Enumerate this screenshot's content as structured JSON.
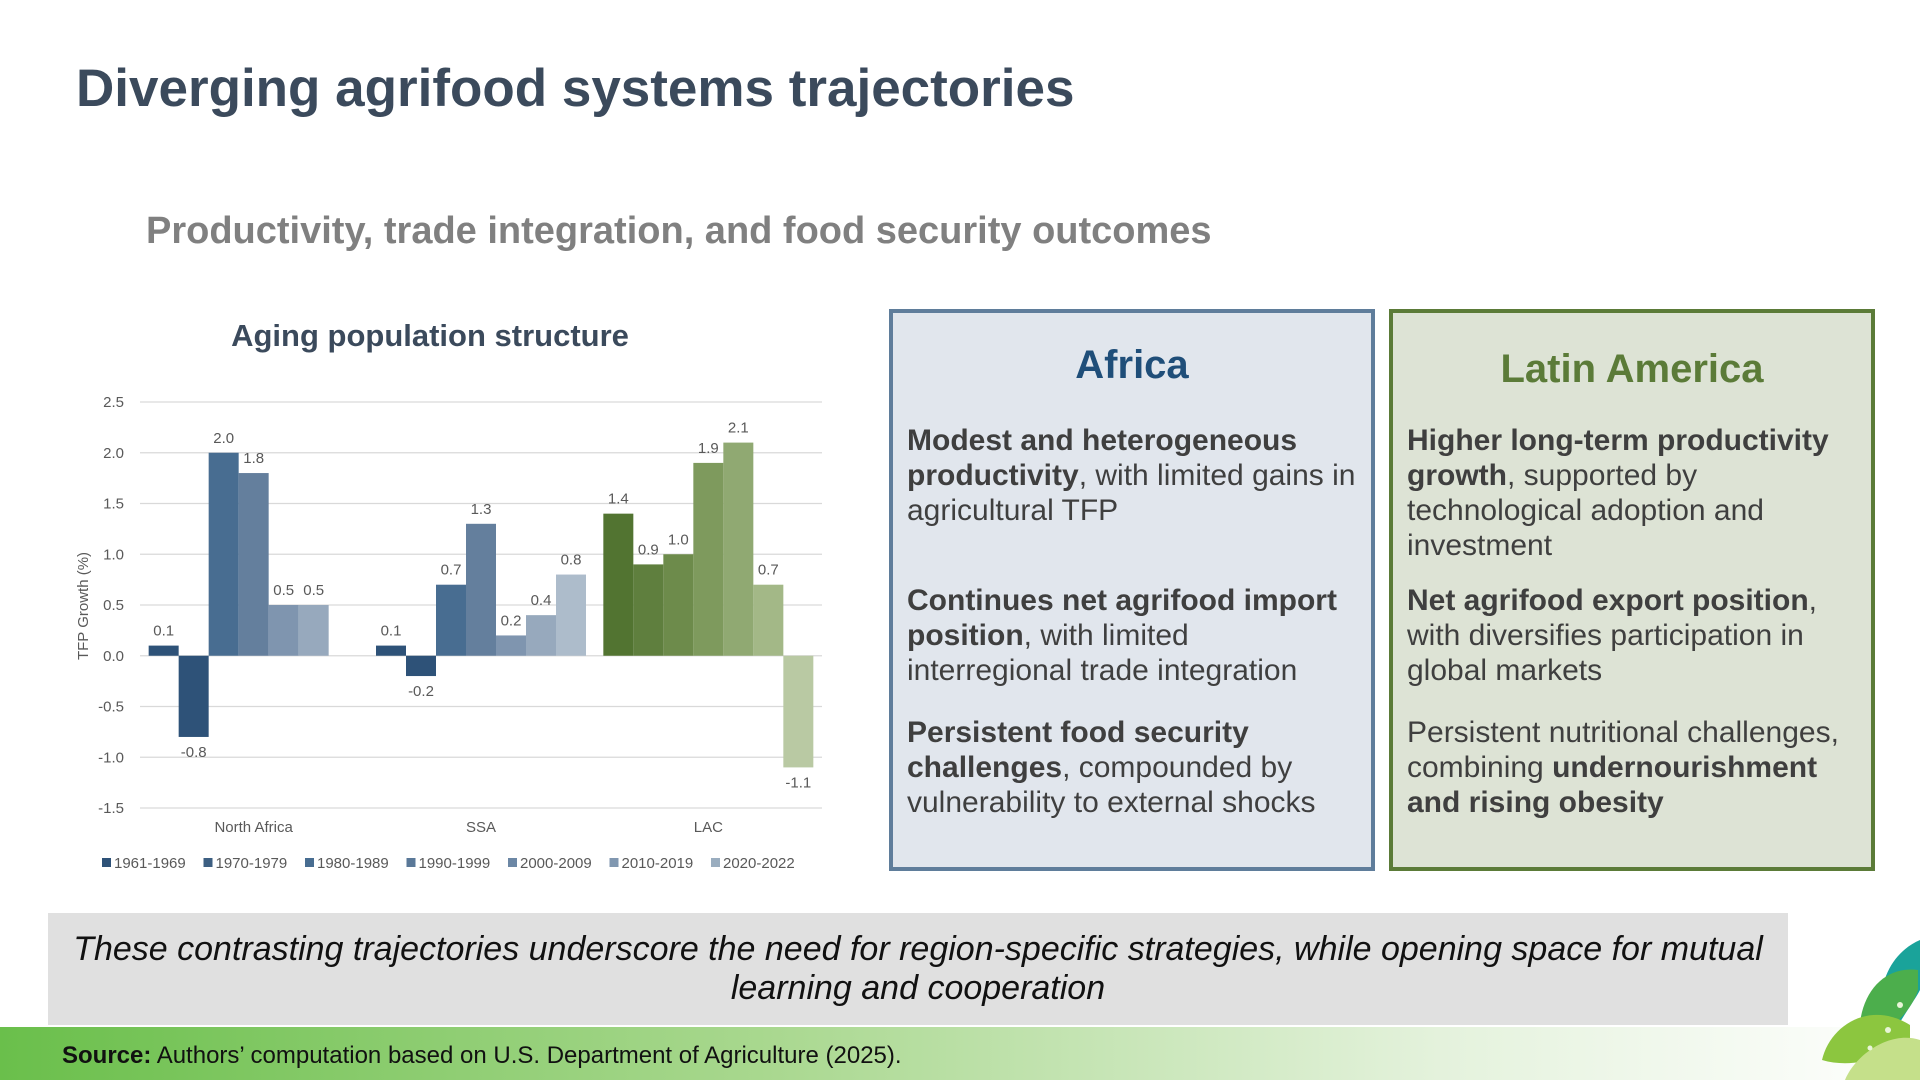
{
  "slide": {
    "title": "Diverging agrifood systems trajectories",
    "subtitle": "Productivity, trade integration, and food security outcomes"
  },
  "chart_data": {
    "type": "bar",
    "title": "Aging population structure",
    "ylabel": "TFP Growth (%)",
    "xlabel": "",
    "categories": [
      "North Africa",
      "SSA",
      "LAC"
    ],
    "ylim": [
      -1.5,
      2.5
    ],
    "yticks": [
      2.5,
      2.0,
      1.5,
      1.0,
      0.5,
      0.0,
      -0.5,
      -1.0,
      -1.5
    ],
    "ytick_labels": [
      "2.5",
      "2.0",
      "1.5",
      "1.0",
      "0.5",
      "0.0",
      "-0.5",
      "-1.0",
      "-1.5"
    ],
    "grid": true,
    "legend_position": "bottom",
    "series": [
      {
        "name": "1961-1969",
        "values": [
          0.1,
          0.1,
          1.4
        ],
        "labels": [
          "0.1",
          "0.1",
          "1.4"
        ]
      },
      {
        "name": "1970-1979",
        "values": [
          -0.8,
          -0.2,
          0.9
        ],
        "labels": [
          "-0.8",
          "-0.2",
          "0.9"
        ]
      },
      {
        "name": "1980-1989",
        "values": [
          2.0,
          0.7,
          1.0
        ],
        "labels": [
          "2.0",
          "0.7",
          "1.0"
        ]
      },
      {
        "name": "1990-1999",
        "values": [
          1.8,
          1.3,
          1.9
        ],
        "labels": [
          "1.8",
          "1.3",
          "1.9"
        ]
      },
      {
        "name": "2000-2009",
        "values": [
          0.5,
          0.2,
          2.1
        ],
        "labels": [
          "0.5",
          "0.2",
          "2.1"
        ]
      },
      {
        "name": "2010-2019",
        "values": [
          0.5,
          0.4,
          0.7
        ],
        "labels": [
          "0.5",
          "0.4",
          "0.7"
        ]
      },
      {
        "name": "2020-2022",
        "values": [
          null,
          0.8,
          -1.1
        ],
        "labels": [
          "",
          "0.8",
          "-1.1"
        ]
      }
    ],
    "colors": {
      "North Africa": [
        "#2e5278",
        "#2e5278",
        "#486d91",
        "#647f9d",
        "#7f95af",
        "#97a9bd",
        "#adbccb"
      ],
      "SSA": [
        "#2e5278",
        "#2e5278",
        "#486d91",
        "#647f9d",
        "#7f95af",
        "#97a9bd",
        "#adbccb"
      ],
      "LAC": [
        "#527431",
        "#5f7f3e",
        "#6d8b4b",
        "#7e9a5d",
        "#90a972",
        "#a3b887",
        "#b9c9a3"
      ],
      "legend": [
        "#2e5278",
        "#3d5f82",
        "#486d91",
        "#5a7898",
        "#6c87a5",
        "#8097b0",
        "#9aadbf"
      ]
    }
  },
  "africa_panel": {
    "heading": "Africa",
    "point1_bold": "Modest and heterogeneous productivity",
    "point1_rest": ", with limited gains in agricultural TFP",
    "point2_bold": "Continues net agrifood import position",
    "point2_rest": ", with limited interregional trade integration",
    "point3_bold": "Persistent food security challenges",
    "point3_rest": ", compounded by vulnerability to external shocks"
  },
  "latam_panel": {
    "heading": "Latin America",
    "point1_bold": "Higher long-term productivity growth",
    "point1_rest": ", supported by technological adoption and investment",
    "point2_bold": "Net agrifood export position",
    "point2_rest": ", with diversifies participation in global markets",
    "point3_plain": "Persistent nutritional challenges, combining ",
    "point3_bold": "undernourishment and rising obesity"
  },
  "conclusion": {
    "text": "These contrasting trajectories underscore the need for region-specific strategies, while opening space for mutual learning and cooperation"
  },
  "source": {
    "label": "Source:",
    "text": " Authors’ computation based on U.S. Department of Agriculture (2025)."
  },
  "decor": {
    "logo_icon": "leaf-logo-icon"
  }
}
